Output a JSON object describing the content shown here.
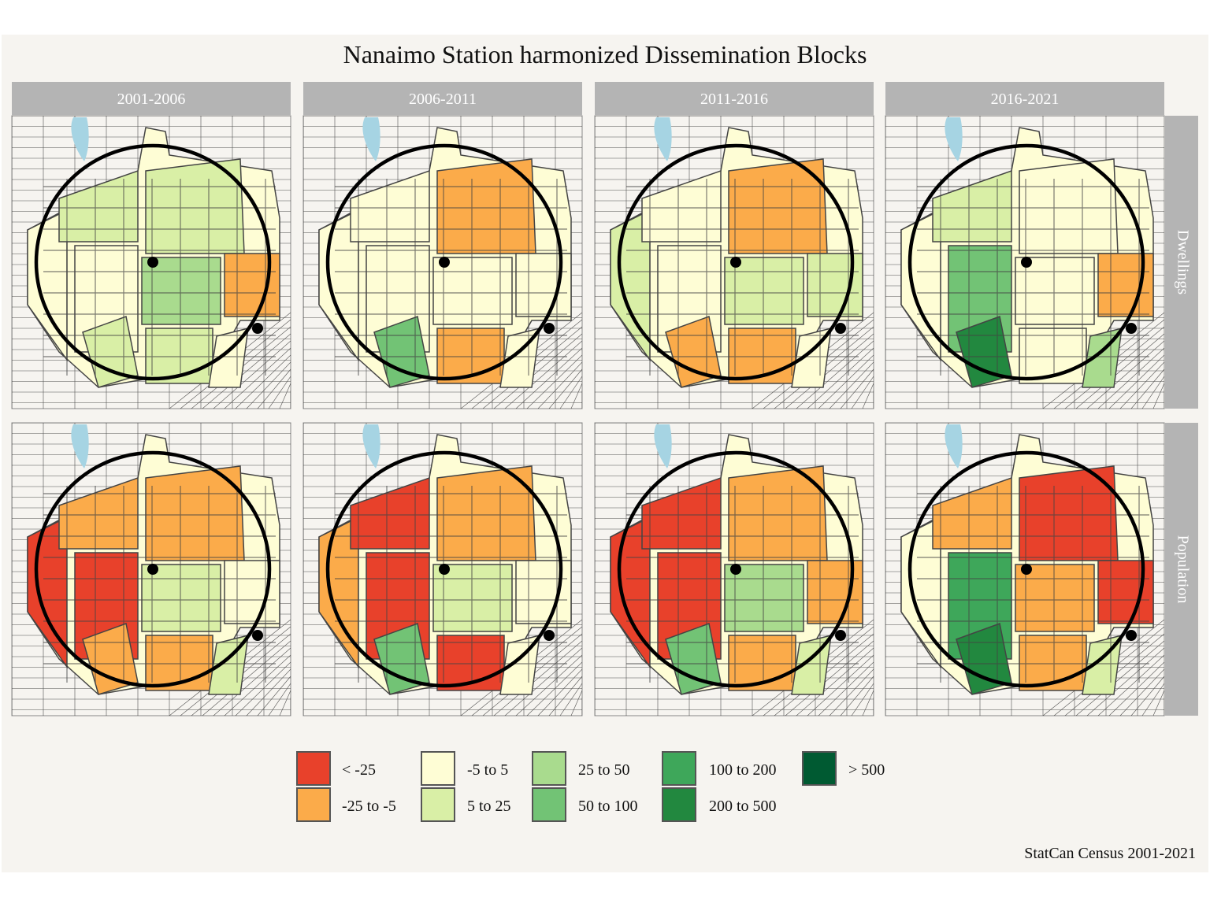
{
  "title": "Nanaimo Station harmonized Dissemination Blocks",
  "caption": "StatCan Census 2001-2021",
  "columns": [
    "2001-2006",
    "2006-2011",
    "2011-2016",
    "2016-2021"
  ],
  "rows": [
    "Dwellings",
    "Population"
  ],
  "legend": [
    {
      "label": "< -25",
      "color": "#e8412b"
    },
    {
      "label": "-25 to -5",
      "color": "#fbab4a"
    },
    {
      "label": "-5 to 5",
      "color": "#fefdd5"
    },
    {
      "label": "5 to 25",
      "color": "#d9efa6"
    },
    {
      "label": "25 to 50",
      "color": "#a9db8e"
    },
    {
      "label": "50 to 100",
      "color": "#72c375"
    },
    {
      "label": "100 to 200",
      "color": "#3ea75a"
    },
    {
      "label": "200 to 500",
      "color": "#22883f"
    },
    {
      "label": "> 500",
      "color": "#005a32"
    }
  ],
  "map_colors": {
    "background": "#f6f4f0",
    "water": "#a6d4e3",
    "roads": "#1a1a1a",
    "block_border": "#444444",
    "circle": "#000000"
  },
  "panels": {
    "Dwellings": {
      "2001-2006": [
        "-5 to 5",
        "5 to 25",
        "25 to 50",
        "5 to 25",
        "-5 to 5",
        "5 to 25",
        "-25 to -5",
        "5 to 25",
        "-5 to 5"
      ],
      "2006-2011": [
        "-5 to 5",
        "-5 to 5",
        "-5 to 5",
        "-25 to -5",
        "-5 to 5",
        "50 to 100",
        "-5 to 5",
        "-25 to -5",
        "-5 to 5"
      ],
      "2011-2016": [
        "5 to 25",
        "-5 to 5",
        "5 to 25",
        "-25 to -5",
        "-5 to 5",
        "-25 to -5",
        "5 to 25",
        "-25 to -5",
        "-5 to 5"
      ],
      "2016-2021": [
        "-5 to 5",
        "5 to 25",
        "-5 to 5",
        "-5 to 5",
        "50 to 100",
        "200 to 500",
        "-25 to -5",
        "-5 to 5",
        "25 to 50"
      ]
    },
    "Population": {
      "2001-2006": [
        "< -25",
        "-25 to -5",
        "5 to 25",
        "-25 to -5",
        "< -25",
        "-25 to -5",
        "-5 to 5",
        "-25 to -5",
        "5 to 25"
      ],
      "2006-2011": [
        "-25 to -5",
        "< -25",
        "5 to 25",
        "-25 to -5",
        "< -25",
        "50 to 100",
        "-5 to 5",
        "< -25",
        "-5 to 5"
      ],
      "2011-2016": [
        "< -25",
        "< -25",
        "25 to 50",
        "-25 to -5",
        "< -25",
        "50 to 100",
        "-25 to -5",
        "-25 to -5",
        "5 to 25"
      ],
      "2016-2021": [
        "-5 to 5",
        "-25 to -5",
        "-25 to -5",
        "< -25",
        "100 to 200",
        "200 to 500",
        "< -25",
        "-25 to -5",
        "5 to 25"
      ]
    }
  }
}
